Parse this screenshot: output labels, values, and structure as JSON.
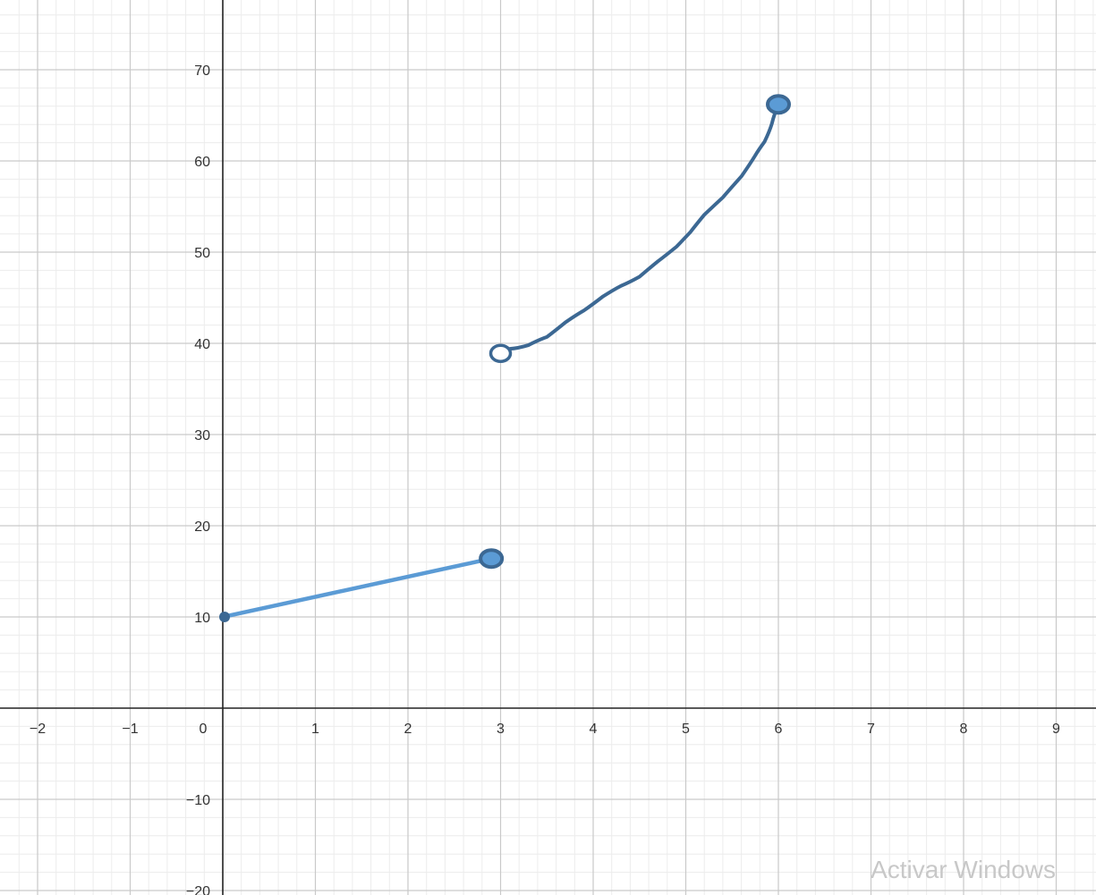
{
  "chart_data": {
    "type": "line",
    "x_ticks": [
      "−2",
      "−1",
      "0",
      "1",
      "2",
      "3",
      "4",
      "5",
      "6",
      "7",
      "8",
      "9"
    ],
    "x_tick_values": [
      -2,
      -1,
      0,
      1,
      2,
      3,
      4,
      5,
      6,
      7,
      8,
      9
    ],
    "y_ticks": [
      "70",
      "60",
      "50",
      "40",
      "30",
      "20",
      "10",
      "−10",
      "−20"
    ],
    "y_tick_values": [
      70,
      60,
      50,
      40,
      30,
      20,
      10,
      -10,
      -20
    ],
    "xlim": [
      -2.4,
      9.4
    ],
    "ylim": [
      -20.5,
      77
    ],
    "grid": true,
    "minor_grid_per_unit_x": 5,
    "minor_grid_per_unit_y": 5,
    "series": [
      {
        "style": "straight",
        "color": "#5b9bd5",
        "points": [
          [
            0,
            10
          ],
          [
            2.9,
            16.4
          ]
        ],
        "endpoints": [
          {
            "x": 0,
            "y": 10,
            "type": "small-closed"
          },
          {
            "x": 2.9,
            "y": 16.4,
            "type": "closed"
          }
        ]
      },
      {
        "style": "hand-drawn",
        "color": "#3c6893",
        "points": [
          [
            3.0,
            38.9
          ],
          [
            3.1,
            39.4
          ],
          [
            3.3,
            39.8
          ],
          [
            3.5,
            40.7
          ],
          [
            3.7,
            42.3
          ],
          [
            3.9,
            43.6
          ],
          [
            4.1,
            45.1
          ],
          [
            4.3,
            46.3
          ],
          [
            4.5,
            47.3
          ],
          [
            4.7,
            49.0
          ],
          [
            4.9,
            50.6
          ],
          [
            5.05,
            52.2
          ],
          [
            5.2,
            54.1
          ],
          [
            5.4,
            56.0
          ],
          [
            5.6,
            58.3
          ],
          [
            5.75,
            60.6
          ],
          [
            5.85,
            62.1
          ],
          [
            5.93,
            64.1
          ],
          [
            6.0,
            66.2
          ]
        ],
        "endpoints": [
          {
            "x": 3.0,
            "y": 38.9,
            "type": "open"
          },
          {
            "x": 6.0,
            "y": 66.2,
            "type": "closed"
          }
        ]
      }
    ],
    "colors": {
      "minor_grid": "#ececec",
      "major_grid": "#c9c9c9",
      "axis": "#222222",
      "point_fill": "#5b9bd5",
      "point_stroke": "#3c6893"
    }
  },
  "watermark": "Activar Windows"
}
